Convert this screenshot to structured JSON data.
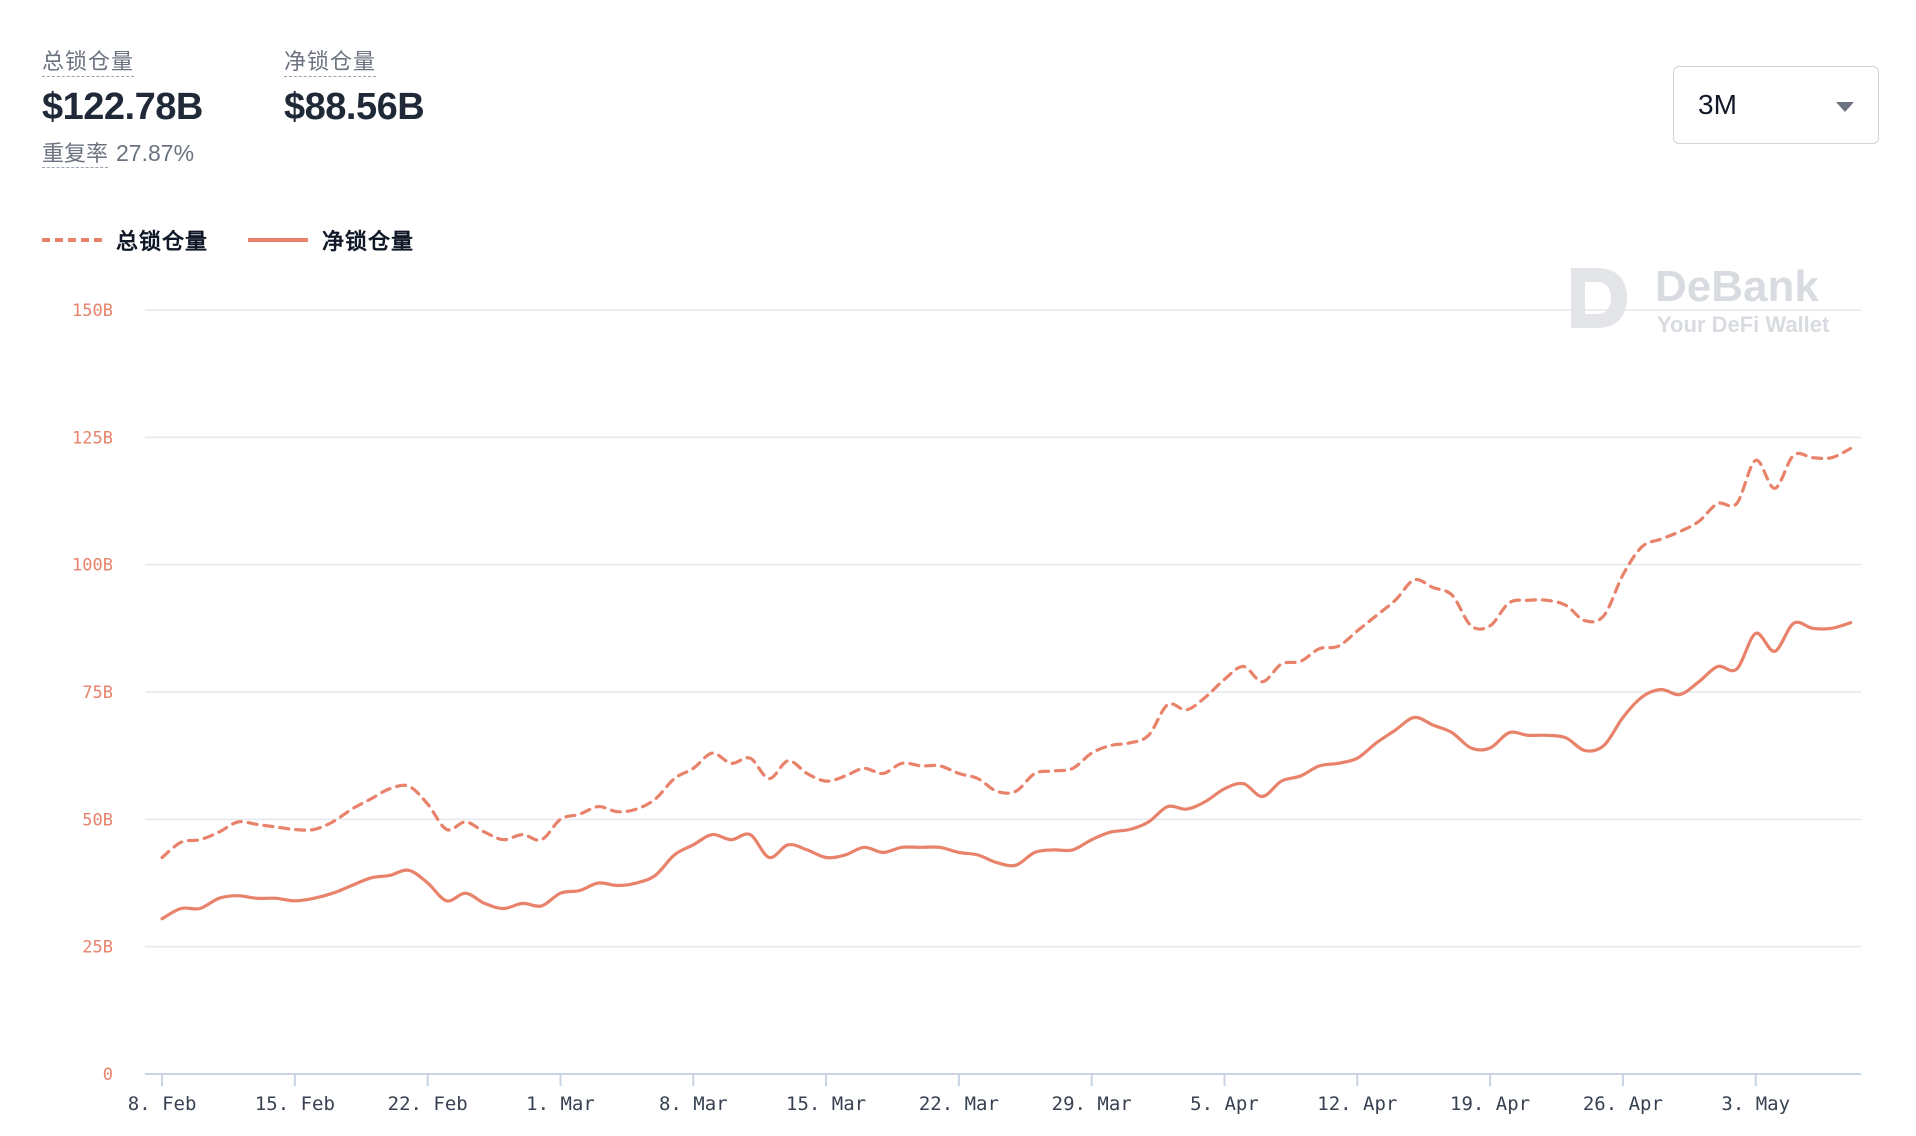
{
  "stats": {
    "total_label": "总锁仓量",
    "total_value": "$122.78B",
    "net_label": "净锁仓量",
    "net_value": "$88.56B",
    "overlap_label": "重复率",
    "overlap_value": "27.87%"
  },
  "range_select": {
    "value": "3M",
    "icon": "chevron-down-icon"
  },
  "watermark": {
    "name": "DeBank",
    "tagline": "Your DeFi Wallet"
  },
  "colors": {
    "series": "#e8826a",
    "grid": "#e5e7eb",
    "axis": "#c9d3e6"
  },
  "chart_data": {
    "type": "line",
    "legend_placement": "top-left",
    "grid": true,
    "ylim": [
      0,
      150
    ],
    "y_ticks": [
      0,
      25,
      50,
      75,
      100,
      125,
      150
    ],
    "y_tick_labels": [
      "0",
      "25B",
      "50B",
      "75B",
      "100B",
      "125B",
      "150B"
    ],
    "x_ticks": [
      "2021-02-08",
      "2021-02-15",
      "2021-02-22",
      "2021-03-01",
      "2021-03-08",
      "2021-03-15",
      "2021-03-22",
      "2021-03-29",
      "2021-04-05",
      "2021-04-12",
      "2021-04-19",
      "2021-04-26",
      "2021-05-03"
    ],
    "x_tick_labels": [
      "8. Feb",
      "15. Feb",
      "22. Feb",
      "1. Mar",
      "8. Mar",
      "15. Mar",
      "22. Mar",
      "29. Mar",
      "5. Apr",
      "12. Apr",
      "19. Apr",
      "26. Apr",
      "3. May"
    ],
    "series": [
      {
        "name": "总锁仓量",
        "style": "dashed",
        "points": [
          [
            "2021-02-08",
            42.5
          ],
          [
            "2021-02-09",
            45.5
          ],
          [
            "2021-02-10",
            46
          ],
          [
            "2021-02-11",
            47.5
          ],
          [
            "2021-02-12",
            49.5
          ],
          [
            "2021-02-13",
            49
          ],
          [
            "2021-02-14",
            48.5
          ],
          [
            "2021-02-15",
            48
          ],
          [
            "2021-02-16",
            48
          ],
          [
            "2021-02-17",
            49.5
          ],
          [
            "2021-02-18",
            52
          ],
          [
            "2021-02-19",
            54
          ],
          [
            "2021-02-20",
            56
          ],
          [
            "2021-02-21",
            56.5
          ],
          [
            "2021-02-22",
            53
          ],
          [
            "2021-02-23",
            48
          ],
          [
            "2021-02-24",
            49.5
          ],
          [
            "2021-02-25",
            47.5
          ],
          [
            "2021-02-26",
            46
          ],
          [
            "2021-02-27",
            47
          ],
          [
            "2021-02-28",
            46
          ],
          [
            "2021-03-01",
            50
          ],
          [
            "2021-03-02",
            51
          ],
          [
            "2021-03-03",
            52.5
          ],
          [
            "2021-03-04",
            51.5
          ],
          [
            "2021-03-05",
            52
          ],
          [
            "2021-03-06",
            54
          ],
          [
            "2021-03-07",
            58
          ],
          [
            "2021-03-08",
            60
          ],
          [
            "2021-03-09",
            63
          ],
          [
            "2021-03-10",
            61
          ],
          [
            "2021-03-11",
            62
          ],
          [
            "2021-03-12",
            58
          ],
          [
            "2021-03-13",
            61.5
          ],
          [
            "2021-03-14",
            59
          ],
          [
            "2021-03-15",
            57.5
          ],
          [
            "2021-03-16",
            58.5
          ],
          [
            "2021-03-17",
            60
          ],
          [
            "2021-03-18",
            59
          ],
          [
            "2021-03-19",
            61
          ],
          [
            "2021-03-20",
            60.5
          ],
          [
            "2021-03-21",
            60.5
          ],
          [
            "2021-03-22",
            59
          ],
          [
            "2021-03-23",
            58
          ],
          [
            "2021-03-24",
            55.5
          ],
          [
            "2021-03-25",
            55.5
          ],
          [
            "2021-03-26",
            59
          ],
          [
            "2021-03-27",
            59.5
          ],
          [
            "2021-03-28",
            60
          ],
          [
            "2021-03-29",
            63
          ],
          [
            "2021-03-30",
            64.5
          ],
          [
            "2021-03-31",
            65
          ],
          [
            "2021-04-01",
            66.5
          ],
          [
            "2021-04-02",
            72.5
          ],
          [
            "2021-04-03",
            71.5
          ],
          [
            "2021-04-04",
            74
          ],
          [
            "2021-04-05",
            77.5
          ],
          [
            "2021-04-06",
            80
          ],
          [
            "2021-04-07",
            77
          ],
          [
            "2021-04-08",
            80.5
          ],
          [
            "2021-04-09",
            81
          ],
          [
            "2021-04-10",
            83.5
          ],
          [
            "2021-04-11",
            84
          ],
          [
            "2021-04-12",
            87
          ],
          [
            "2021-04-13",
            90
          ],
          [
            "2021-04-14",
            93
          ],
          [
            "2021-04-15",
            97
          ],
          [
            "2021-04-16",
            95.5
          ],
          [
            "2021-04-17",
            94
          ],
          [
            "2021-04-18",
            88
          ],
          [
            "2021-04-19",
            88
          ],
          [
            "2021-04-20",
            92.5
          ],
          [
            "2021-04-21",
            93
          ],
          [
            "2021-04-22",
            93
          ],
          [
            "2021-04-23",
            92
          ],
          [
            "2021-04-24",
            89
          ],
          [
            "2021-04-25",
            90
          ],
          [
            "2021-04-26",
            98
          ],
          [
            "2021-04-27",
            103.5
          ],
          [
            "2021-04-28",
            105
          ],
          [
            "2021-04-29",
            106.5
          ],
          [
            "2021-04-30",
            108.5
          ],
          [
            "2021-05-01",
            112
          ],
          [
            "2021-05-02",
            112
          ],
          [
            "2021-05-03",
            120.5
          ],
          [
            "2021-05-04",
            115
          ],
          [
            "2021-05-05",
            121.5
          ],
          [
            "2021-05-06",
            121
          ],
          [
            "2021-05-07",
            121
          ],
          [
            "2021-05-08",
            122.8
          ]
        ]
      },
      {
        "name": "净锁仓量",
        "style": "solid",
        "points": [
          [
            "2021-02-08",
            30.5
          ],
          [
            "2021-02-09",
            32.5
          ],
          [
            "2021-02-10",
            32.5
          ],
          [
            "2021-02-11",
            34.5
          ],
          [
            "2021-02-12",
            35
          ],
          [
            "2021-02-13",
            34.5
          ],
          [
            "2021-02-14",
            34.5
          ],
          [
            "2021-02-15",
            34
          ],
          [
            "2021-02-16",
            34.5
          ],
          [
            "2021-02-17",
            35.5
          ],
          [
            "2021-02-18",
            37
          ],
          [
            "2021-02-19",
            38.5
          ],
          [
            "2021-02-20",
            39
          ],
          [
            "2021-02-21",
            40
          ],
          [
            "2021-02-22",
            37.5
          ],
          [
            "2021-02-23",
            34
          ],
          [
            "2021-02-24",
            35.5
          ],
          [
            "2021-02-25",
            33.5
          ],
          [
            "2021-02-26",
            32.5
          ],
          [
            "2021-02-27",
            33.5
          ],
          [
            "2021-02-28",
            33
          ],
          [
            "2021-03-01",
            35.5
          ],
          [
            "2021-03-02",
            36
          ],
          [
            "2021-03-03",
            37.5
          ],
          [
            "2021-03-04",
            37
          ],
          [
            "2021-03-05",
            37.5
          ],
          [
            "2021-03-06",
            39
          ],
          [
            "2021-03-07",
            43
          ],
          [
            "2021-03-08",
            45
          ],
          [
            "2021-03-09",
            47
          ],
          [
            "2021-03-10",
            46
          ],
          [
            "2021-03-11",
            47
          ],
          [
            "2021-03-12",
            42.5
          ],
          [
            "2021-03-13",
            45
          ],
          [
            "2021-03-14",
            44
          ],
          [
            "2021-03-15",
            42.5
          ],
          [
            "2021-03-16",
            43
          ],
          [
            "2021-03-17",
            44.5
          ],
          [
            "2021-03-18",
            43.5
          ],
          [
            "2021-03-19",
            44.5
          ],
          [
            "2021-03-20",
            44.5
          ],
          [
            "2021-03-21",
            44.5
          ],
          [
            "2021-03-22",
            43.5
          ],
          [
            "2021-03-23",
            43
          ],
          [
            "2021-03-24",
            41.5
          ],
          [
            "2021-03-25",
            41
          ],
          [
            "2021-03-26",
            43.5
          ],
          [
            "2021-03-27",
            44
          ],
          [
            "2021-03-28",
            44
          ],
          [
            "2021-03-29",
            46
          ],
          [
            "2021-03-30",
            47.5
          ],
          [
            "2021-03-31",
            48
          ],
          [
            "2021-04-01",
            49.5
          ],
          [
            "2021-04-02",
            52.5
          ],
          [
            "2021-04-03",
            52
          ],
          [
            "2021-04-04",
            53.5
          ],
          [
            "2021-04-05",
            56
          ],
          [
            "2021-04-06",
            57
          ],
          [
            "2021-04-07",
            54.5
          ],
          [
            "2021-04-08",
            57.5
          ],
          [
            "2021-04-09",
            58.5
          ],
          [
            "2021-04-10",
            60.5
          ],
          [
            "2021-04-11",
            61
          ],
          [
            "2021-04-12",
            62
          ],
          [
            "2021-04-13",
            65
          ],
          [
            "2021-04-14",
            67.5
          ],
          [
            "2021-04-15",
            70
          ],
          [
            "2021-04-16",
            68.5
          ],
          [
            "2021-04-17",
            67
          ],
          [
            "2021-04-18",
            64
          ],
          [
            "2021-04-19",
            64
          ],
          [
            "2021-04-20",
            67
          ],
          [
            "2021-04-21",
            66.5
          ],
          [
            "2021-04-22",
            66.5
          ],
          [
            "2021-04-23",
            66
          ],
          [
            "2021-04-24",
            63.5
          ],
          [
            "2021-04-25",
            64.5
          ],
          [
            "2021-04-26",
            70
          ],
          [
            "2021-04-27",
            74
          ],
          [
            "2021-04-28",
            75.5
          ],
          [
            "2021-04-29",
            74.5
          ],
          [
            "2021-04-30",
            77
          ],
          [
            "2021-05-01",
            80
          ],
          [
            "2021-05-02",
            79.5
          ],
          [
            "2021-05-03",
            86.5
          ],
          [
            "2021-05-04",
            83
          ],
          [
            "2021-05-05",
            88.5
          ],
          [
            "2021-05-06",
            87.5
          ],
          [
            "2021-05-07",
            87.5
          ],
          [
            "2021-05-08",
            88.6
          ]
        ]
      }
    ]
  }
}
